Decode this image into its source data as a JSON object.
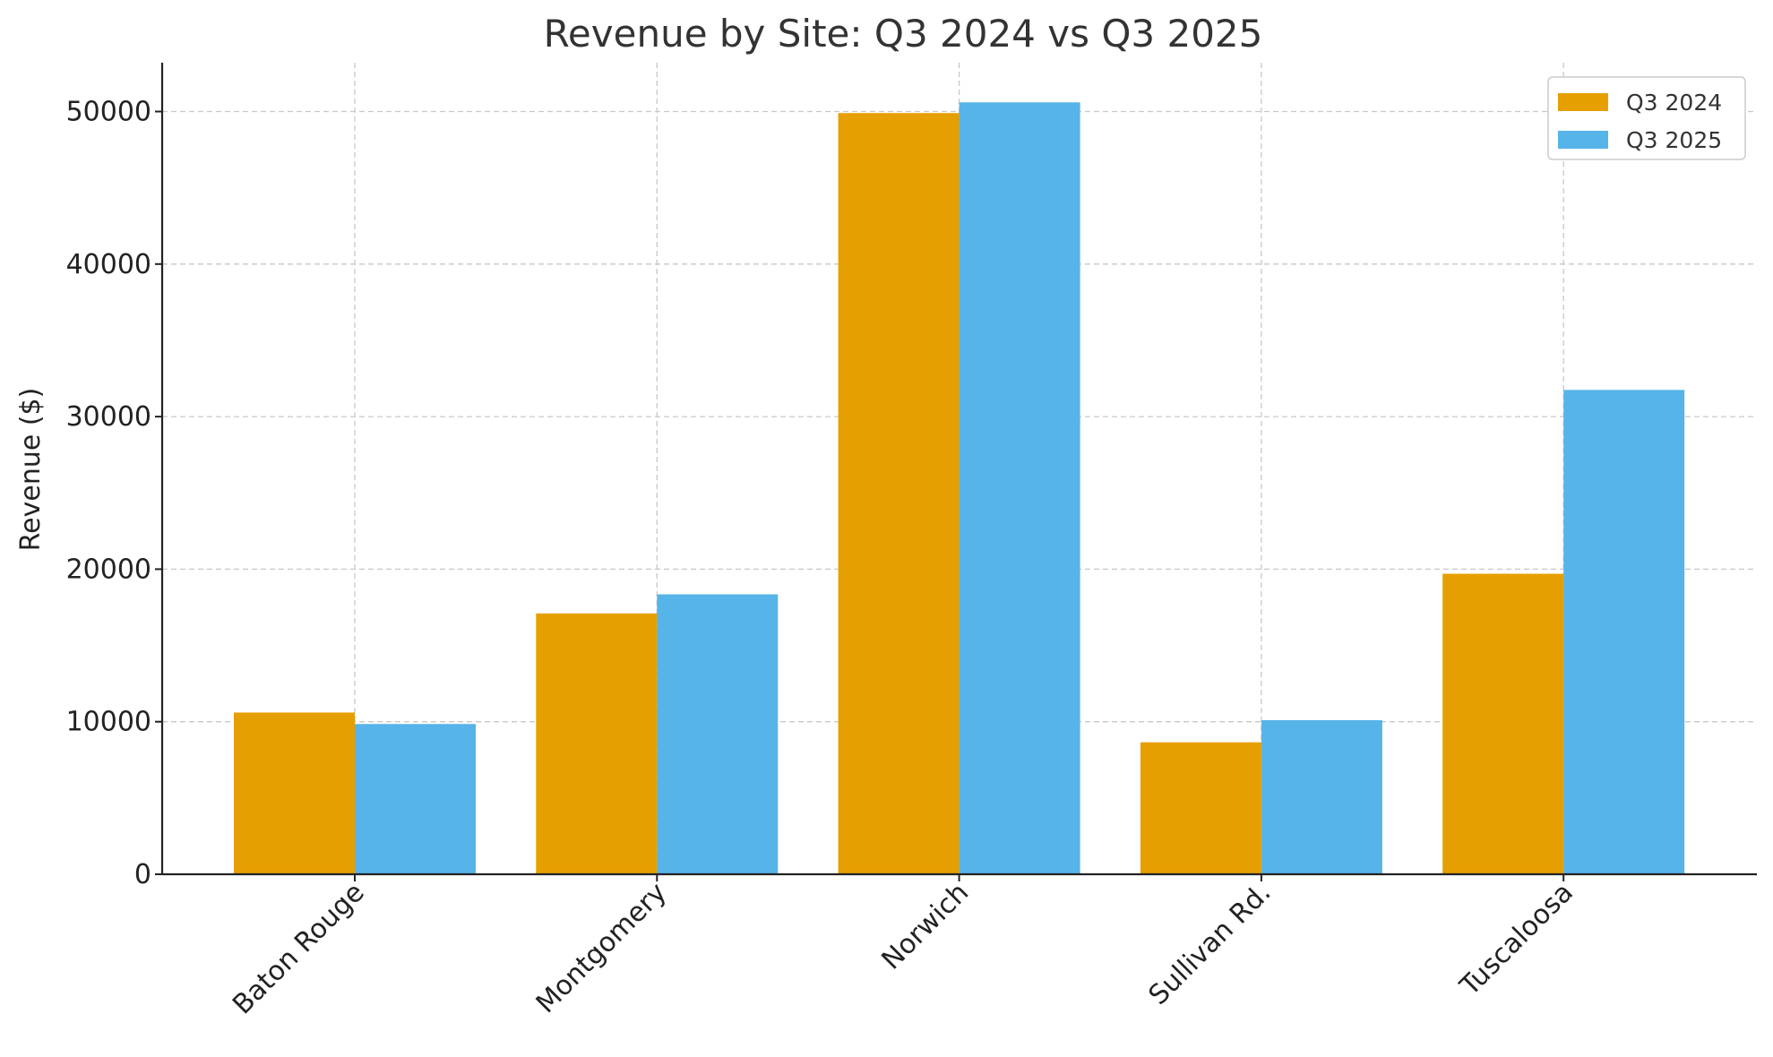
{
  "chart_data": {
    "type": "bar",
    "title": "Revenue by Site: Q3 2024 vs Q3 2025",
    "xlabel": "",
    "ylabel": "Revenue ($)",
    "ylim": [
      0,
      53200
    ],
    "yticks": [
      0,
      10000,
      20000,
      30000,
      40000,
      50000
    ],
    "categories": [
      "Baton Rouge",
      "Montgomery",
      "Norwich",
      "Sullivan Rd.",
      "Tuscaloosa"
    ],
    "series": [
      {
        "name": "Q3 2024",
        "color": "#E69F00",
        "values": [
          10600,
          17100,
          49900,
          8650,
          19700
        ]
      },
      {
        "name": "Q3 2025",
        "color": "#56B4E9",
        "values": [
          9850,
          18350,
          50600,
          10100,
          31750
        ]
      }
    ],
    "grid": true,
    "legend": "top-right"
  }
}
